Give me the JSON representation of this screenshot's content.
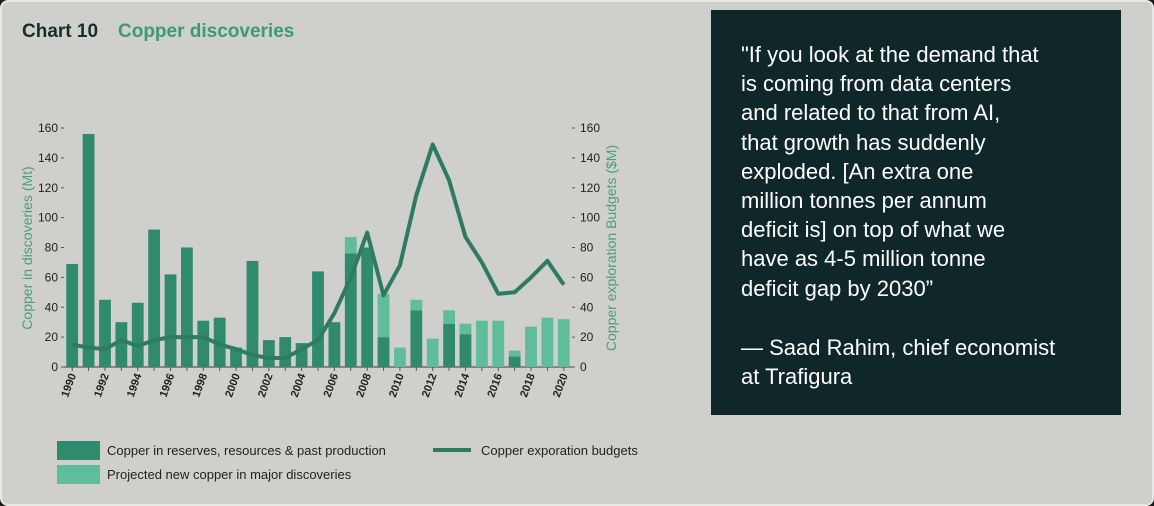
{
  "chart_data": {
    "type": "bar",
    "chart_label": "Chart 10",
    "title": "Copper discoveries",
    "ylabel": "Copper in discoveries (Mt)",
    "y2label": "Copper exploration Budgets ($M)",
    "categories": [
      "1990",
      null,
      "1992",
      null,
      "1994",
      null,
      "1996",
      null,
      "1998",
      null,
      "2000",
      null,
      "2002",
      null,
      "2004",
      null,
      "2006",
      null,
      "2008",
      null,
      "2010",
      null,
      "2012",
      null,
      "2014",
      null,
      "2016",
      null,
      "2018",
      null,
      "2020"
    ],
    "series": [
      {
        "name": "Copper in reserves, resources & past production",
        "color": "#2f8a6e",
        "stack": true,
        "values": [
          69,
          156,
          45,
          30,
          43,
          92,
          62,
          80,
          31,
          33,
          13,
          71,
          18,
          20,
          16,
          64,
          30,
          76,
          80,
          20,
          0,
          38,
          0,
          29,
          22,
          0,
          0,
          7,
          0,
          0,
          0
        ]
      },
      {
        "name": "Projected new copper in major discoveries",
        "color": "#5fbd9b",
        "stack": true,
        "values": [
          0,
          0,
          0,
          0,
          0,
          0,
          0,
          0,
          0,
          0,
          0,
          0,
          0,
          0,
          0,
          0,
          0,
          11,
          0,
          29,
          13,
          7,
          19,
          9,
          7,
          31,
          31,
          4,
          27,
          33,
          32
        ]
      },
      {
        "name": "Copper exporation budgets",
        "color": "#2e7a62",
        "type": "line",
        "axis": "y2",
        "values": [
          15,
          13,
          12,
          18,
          14,
          18,
          20,
          20,
          20,
          15,
          12,
          8,
          6,
          6,
          12,
          18,
          36,
          60,
          90,
          48,
          68,
          115,
          149,
          125,
          87,
          70,
          49,
          50,
          60,
          71,
          55
        ]
      }
    ],
    "ylim": [
      0,
      160
    ],
    "yticks": [
      0,
      20,
      40,
      60,
      80,
      100,
      120,
      140,
      160
    ],
    "y2lim": [
      0,
      160
    ],
    "y2ticks": [
      0,
      20,
      40,
      60,
      80,
      100,
      120,
      140,
      160
    ],
    "grid": false
  },
  "quote": {
    "lines": [
      "\"If you look at the demand that",
      "is coming from data centers",
      "and related to that from AI,",
      "that growth has suddenly",
      "exploded. [An extra one",
      "million tonnes per annum",
      "deficit is] on top of what we",
      "have as 4-5 million tonne",
      "deficit gap by 2030”"
    ],
    "attribution": [
      "— Saad Rahim, chief economist",
      "at Trafigura"
    ]
  }
}
